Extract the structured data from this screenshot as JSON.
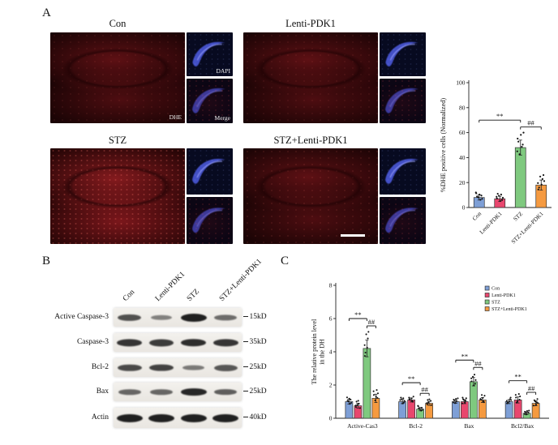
{
  "figure": {
    "panel_labels": {
      "a": "A",
      "b": "B",
      "c": "C"
    }
  },
  "panel_a": {
    "groups": [
      {
        "title": "Con"
      },
      {
        "title": "Lenti-PDK1"
      },
      {
        "title": "STZ"
      },
      {
        "title": "STZ+Lenti-PDK1"
      }
    ],
    "image_labels": {
      "dapi": "DAPI",
      "dhe": "DHE",
      "merge": "Merge"
    }
  },
  "panel_b": {
    "lane_headers": [
      "Con",
      "Lenti-PDK1",
      "STZ",
      "STZ+Lenti-PDK1"
    ],
    "rows": [
      {
        "protein": "Active Caspase-3",
        "marker": "15kD",
        "band_intensities": [
          0.65,
          0.3,
          1.0,
          0.45
        ]
      },
      {
        "protein": "Caspase-3",
        "marker": "35kD",
        "band_intensities": [
          0.85,
          0.8,
          0.9,
          0.85
        ]
      },
      {
        "protein": "Bcl-2",
        "marker": "25kD",
        "band_intensities": [
          0.7,
          0.75,
          0.35,
          0.6
        ]
      },
      {
        "protein": "Bax",
        "marker": "25kD",
        "band_intensities": [
          0.5,
          0.5,
          0.95,
          0.55
        ]
      },
      {
        "protein": "Actin",
        "marker": "40kD",
        "band_intensities": [
          1,
          1,
          1,
          1
        ]
      }
    ]
  },
  "chart_data": [
    {
      "id": "dhe-quantification",
      "type": "bar",
      "ylabel": "%DHE positive cells (Normalized)",
      "ylim": [
        0,
        100
      ],
      "yticks": [
        0,
        20,
        40,
        60,
        80,
        100
      ],
      "categories": [
        "Con",
        "Lenti-PDK1",
        "STZ",
        "STZ+Lenti-PDK1"
      ],
      "values": [
        8,
        7,
        48,
        18
      ],
      "errors": [
        2,
        2,
        6,
        4
      ],
      "colors": [
        "#7e9fd6",
        "#e8476e",
        "#7fc97f",
        "#f59a40"
      ],
      "annotations": [
        {
          "from": 0,
          "to": 2,
          "label": "**"
        },
        {
          "from": 2,
          "to": 3,
          "label": "##"
        }
      ]
    },
    {
      "id": "protein-levels",
      "type": "bar",
      "ylabel": "The relative protein level in the DH",
      "ylim": [
        0,
        8
      ],
      "yticks": [
        0,
        2,
        4,
        6,
        8
      ],
      "categories": [
        "Active-Cas3",
        "Bcl-2",
        "Bax",
        "Bcl2/Bax"
      ],
      "legend_position": "top-right",
      "series": [
        {
          "name": "Con",
          "color": "#7e9fd6",
          "values": [
            1.0,
            1.0,
            1.0,
            1.0
          ],
          "errors": [
            0.15,
            0.12,
            0.1,
            0.12
          ]
        },
        {
          "name": "Lenti-PDK1",
          "color": "#e8476e",
          "values": [
            0.75,
            1.1,
            1.0,
            1.1
          ],
          "errors": [
            0.15,
            0.12,
            0.12,
            0.18
          ]
        },
        {
          "name": "STZ",
          "color": "#7fc97f",
          "values": [
            4.2,
            0.55,
            2.2,
            0.3
          ],
          "errors": [
            0.5,
            0.1,
            0.25,
            0.08
          ]
        },
        {
          "name": "STZ+Lenti-PDK1",
          "color": "#f59a40",
          "values": [
            1.2,
            0.9,
            1.1,
            0.9
          ],
          "errors": [
            0.25,
            0.12,
            0.15,
            0.15
          ]
        }
      ],
      "annotations": [
        {
          "category": 0,
          "fromSeries": 0,
          "toSeries": 2,
          "label": "**"
        },
        {
          "category": 0,
          "fromSeries": 2,
          "toSeries": 3,
          "label": "##"
        },
        {
          "category": 1,
          "fromSeries": 0,
          "toSeries": 2,
          "label": "**"
        },
        {
          "category": 1,
          "fromSeries": 2,
          "toSeries": 3,
          "label": "##"
        },
        {
          "category": 2,
          "fromSeries": 0,
          "toSeries": 2,
          "label": "**"
        },
        {
          "category": 2,
          "fromSeries": 2,
          "toSeries": 3,
          "label": "##"
        },
        {
          "category": 3,
          "fromSeries": 0,
          "toSeries": 2,
          "label": "**"
        },
        {
          "category": 3,
          "fromSeries": 2,
          "toSeries": 3,
          "label": "##"
        }
      ]
    }
  ]
}
